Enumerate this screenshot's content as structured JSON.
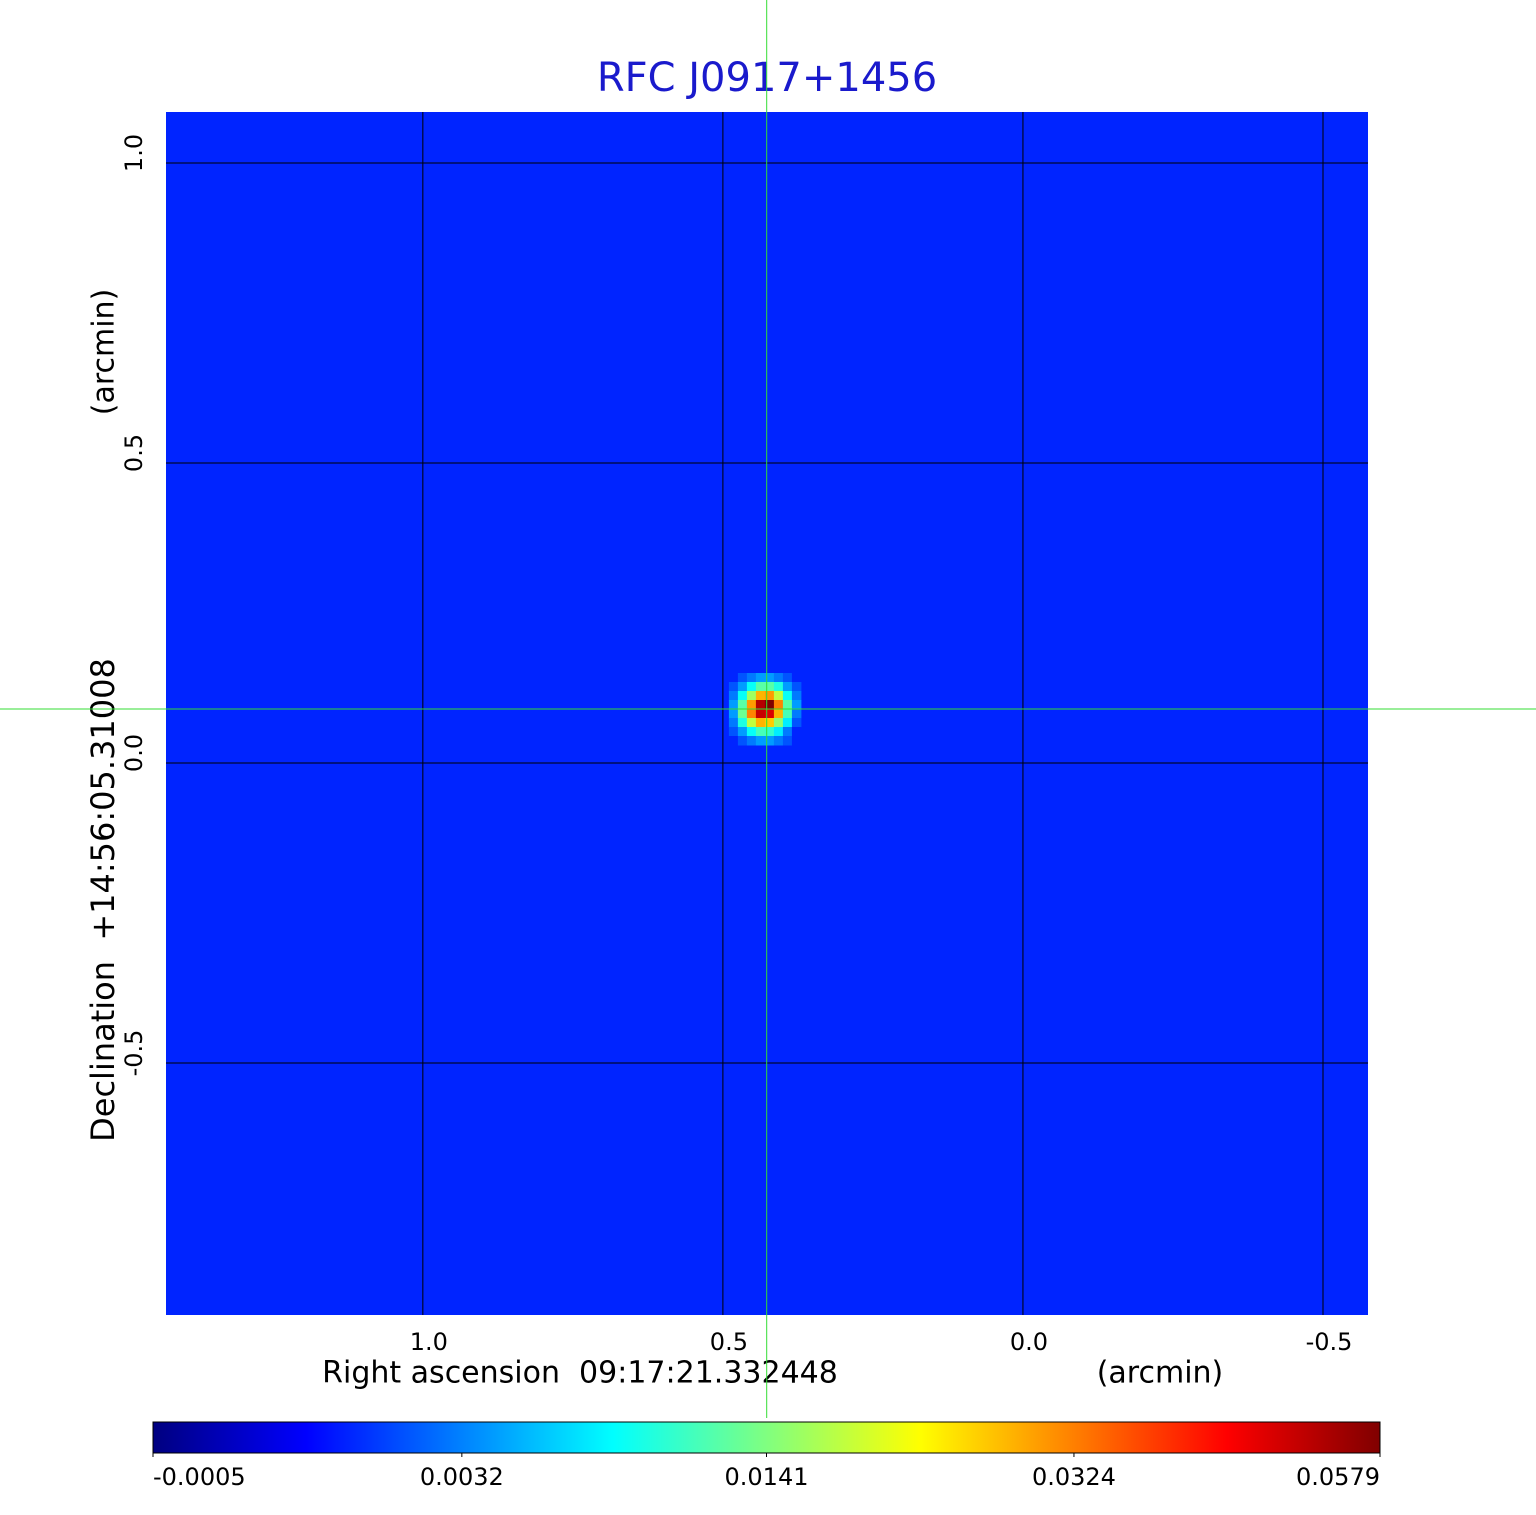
{
  "chart_data": {
    "type": "image",
    "title": "RFC J0917+1456",
    "x_label": "Right ascension  09:17:21.332448",
    "x_unit": "(arcmin)",
    "y_label": "Declination  +14:56:05.31008",
    "y_unit": "(arcmin)",
    "xlim": [
      1.428,
      -0.575
    ],
    "ylim": [
      -0.92,
      1.085
    ],
    "xticks": [
      {
        "value": 1,
        "label": "1.0"
      },
      0.5,
      {
        "value": 0,
        "label": "0.0"
      },
      -0.5
    ],
    "yticks": [
      {
        "value": 1,
        "label": "1.0"
      },
      0.5,
      {
        "value": 0,
        "label": "0.0"
      },
      -0.5
    ],
    "grid": true,
    "colormap": "jet",
    "color_scale": "sqrt",
    "clim": [
      -0.0005,
      0.0579
    ],
    "colorbar_ticks": [
      -0.0005,
      0.0032,
      0.0141,
      0.0324,
      0.0579
    ],
    "background": 0.001,
    "crosshair": {
      "x": 0.427,
      "y": 0.09,
      "color": "#33dd33"
    },
    "source_extent": {
      "x": [
        0.49,
        0.37
      ],
      "y": [
        0.15,
        0.03
      ]
    },
    "source_pixels": [
      [
        0.001,
        0.002,
        0.003,
        0.004,
        0.004,
        0.003,
        0.002,
        0.001
      ],
      [
        0.002,
        0.004,
        0.008,
        0.012,
        0.012,
        0.009,
        0.004,
        0.002
      ],
      [
        0.003,
        0.008,
        0.016,
        0.028,
        0.03,
        0.018,
        0.008,
        0.003
      ],
      [
        0.004,
        0.012,
        0.03,
        0.052,
        0.0579,
        0.032,
        0.012,
        0.004
      ],
      [
        0.004,
        0.013,
        0.032,
        0.05,
        0.048,
        0.028,
        0.011,
        0.003
      ],
      [
        0.003,
        0.009,
        0.018,
        0.028,
        0.026,
        0.015,
        0.007,
        0.002
      ],
      [
        0.002,
        0.004,
        0.008,
        0.011,
        0.01,
        0.007,
        0.003,
        0.001
      ],
      [
        0.001,
        0.002,
        0.003,
        0.004,
        0.004,
        0.003,
        0.002,
        0.001
      ]
    ]
  }
}
